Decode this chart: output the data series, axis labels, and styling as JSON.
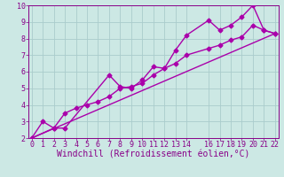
{
  "xlabel": "Windchill (Refroidissement éolien,°C)",
  "background_color": "#cce8e4",
  "line_color": "#aa00aa",
  "grid_color": "#aacccc",
  "xlim": [
    -0.3,
    22.3
  ],
  "ylim": [
    2,
    10
  ],
  "xticks": [
    0,
    1,
    2,
    3,
    4,
    5,
    6,
    7,
    8,
    9,
    10,
    11,
    12,
    13,
    14,
    16,
    17,
    18,
    19,
    20,
    21,
    22
  ],
  "yticks": [
    2,
    3,
    4,
    5,
    6,
    7,
    8,
    9,
    10
  ],
  "line1_x": [
    0,
    1,
    2,
    3,
    7,
    8,
    9,
    10,
    11,
    12,
    13,
    14,
    16,
    17,
    18,
    19,
    20,
    21,
    22
  ],
  "line1_y": [
    2.0,
    3.0,
    2.6,
    2.6,
    5.8,
    5.1,
    5.0,
    5.5,
    6.3,
    6.2,
    7.3,
    8.2,
    9.1,
    8.5,
    8.8,
    9.3,
    10.0,
    8.5,
    8.3
  ],
  "line2_x": [
    0,
    2,
    3,
    4,
    5,
    6,
    7,
    8,
    9,
    10,
    11,
    12,
    13,
    14,
    16,
    17,
    18,
    19,
    20,
    21,
    22
  ],
  "line2_y": [
    2.0,
    2.6,
    3.5,
    3.8,
    4.0,
    4.2,
    4.5,
    5.0,
    5.1,
    5.3,
    5.8,
    6.2,
    6.5,
    7.0,
    7.4,
    7.6,
    7.9,
    8.1,
    8.8,
    8.5,
    8.3
  ],
  "line3_x": [
    0,
    22
  ],
  "line3_y": [
    2.0,
    8.3
  ],
  "marker": "D",
  "marker_size": 2.5,
  "line_width": 1.0,
  "tick_fontsize": 6,
  "xlabel_fontsize": 7
}
